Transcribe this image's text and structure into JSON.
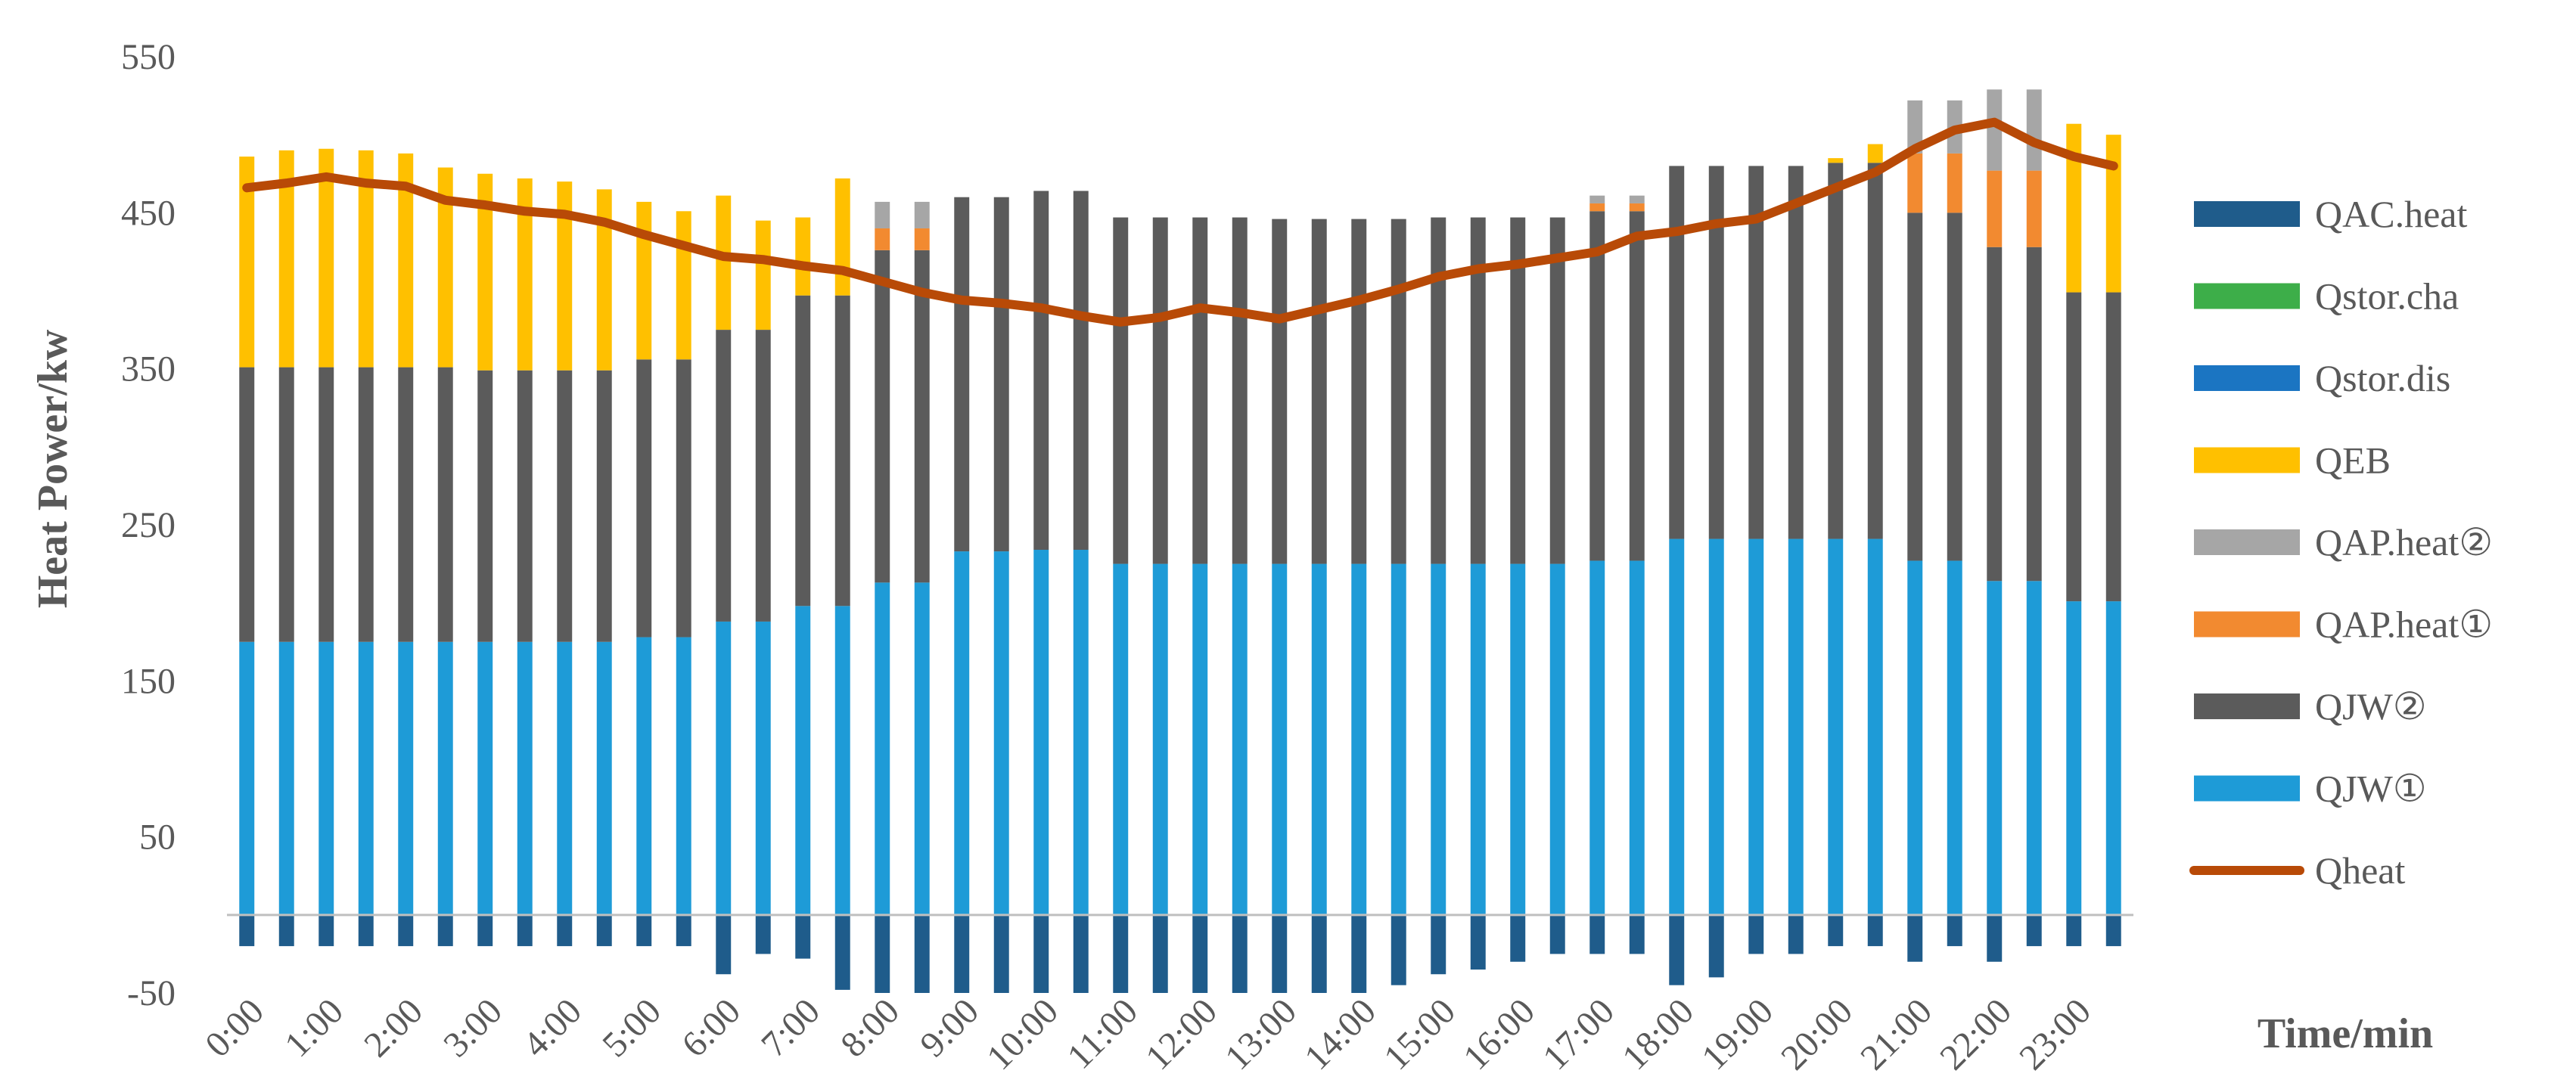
{
  "chart_data": {
    "type": "bar",
    "stacked": true,
    "xlabel": "Time/min",
    "ylabel": "Heat Power/kw",
    "ylim": [
      -50,
      550
    ],
    "yticks": [
      -50,
      50,
      150,
      250,
      350,
      450,
      550
    ],
    "x": [
      "0:00",
      "0:30",
      "1:00",
      "1:30",
      "2:00",
      "2:30",
      "3:00",
      "3:30",
      "4:00",
      "4:30",
      "5:00",
      "5:30",
      "6:00",
      "6:30",
      "7:00",
      "7:30",
      "8:00",
      "8:30",
      "9:00",
      "9:30",
      "10:00",
      "10:30",
      "11:00",
      "11:30",
      "12:00",
      "12:30",
      "13:00",
      "13:30",
      "14:00",
      "14:30",
      "15:00",
      "15:30",
      "16:00",
      "16:30",
      "17:00",
      "17:30",
      "18:00",
      "18:30",
      "19:00",
      "19:30",
      "20:00",
      "20:30",
      "21:00",
      "21:30",
      "22:00",
      "22:30",
      "23:00",
      "23:30"
    ],
    "xtick_labels": [
      "0:00",
      "1:00",
      "2:00",
      "3:00",
      "4:00",
      "5:00",
      "6:00",
      "7:00",
      "8:00",
      "9:00",
      "10:00",
      "11:00",
      "12:00",
      "13:00",
      "14:00",
      "15:00",
      "16:00",
      "17:00",
      "18:00",
      "19:00",
      "20:00",
      "21:00",
      "22:00",
      "23:00"
    ],
    "legend_position": "right",
    "series": [
      {
        "name": "QAC.heat",
        "kind": "bar",
        "color": "#1F5C8B",
        "values": [
          -20,
          -20,
          -20,
          -20,
          -20,
          -20,
          -20,
          -20,
          -20,
          -20,
          -20,
          -20,
          -38,
          -25,
          -28,
          -48,
          -50,
          -50,
          -50,
          -50,
          -50,
          -50,
          -50,
          -50,
          -50,
          -50,
          -50,
          -50,
          -50,
          -45,
          -38,
          -35,
          -30,
          -25,
          -25,
          -25,
          -45,
          -40,
          -25,
          -25,
          -20,
          -20,
          -30,
          -20,
          -30,
          -20,
          -20,
          -20
        ]
      },
      {
        "name": "Qstor.cha",
        "kind": "bar",
        "color": "#3DAE49",
        "values": [
          0,
          0,
          0,
          0,
          0,
          0,
          0,
          0,
          0,
          0,
          0,
          0,
          0,
          0,
          0,
          0,
          0,
          0,
          0,
          0,
          0,
          0,
          0,
          0,
          0,
          0,
          0,
          0,
          0,
          0,
          0,
          0,
          0,
          0,
          0,
          0,
          0,
          0,
          0,
          0,
          0,
          0,
          0,
          0,
          0,
          0,
          0,
          0
        ]
      },
      {
        "name": "Qstor.dis",
        "kind": "bar",
        "color": "#1B75C2",
        "values": [
          0,
          0,
          0,
          0,
          0,
          0,
          0,
          0,
          0,
          0,
          0,
          0,
          0,
          0,
          0,
          0,
          0,
          0,
          0,
          0,
          0,
          0,
          0,
          0,
          0,
          0,
          0,
          0,
          0,
          0,
          0,
          0,
          0,
          0,
          0,
          0,
          0,
          0,
          0,
          0,
          0,
          0,
          0,
          0,
          0,
          0,
          0,
          0
        ]
      },
      {
        "name": "QJW①",
        "kind": "bar",
        "color": "#1E9BD7",
        "values": [
          175,
          175,
          175,
          175,
          175,
          175,
          175,
          175,
          175,
          175,
          178,
          178,
          188,
          188,
          198,
          198,
          213,
          213,
          233,
          233,
          234,
          234,
          225,
          225,
          225,
          225,
          225,
          225,
          225,
          225,
          225,
          225,
          225,
          225,
          227,
          227,
          241,
          241,
          241,
          241,
          241,
          241,
          227,
          227,
          214,
          214,
          201,
          201
        ]
      },
      {
        "name": "QJW②",
        "kind": "bar",
        "color": "#5B5B5B",
        "values": [
          176,
          176,
          176,
          176,
          176,
          176,
          174,
          174,
          174,
          174,
          178,
          178,
          187,
          187,
          199,
          199,
          213,
          213,
          227,
          227,
          230,
          230,
          222,
          222,
          222,
          222,
          221,
          221,
          221,
          221,
          222,
          222,
          222,
          222,
          224,
          224,
          239,
          239,
          239,
          239,
          241,
          241,
          223,
          223,
          214,
          214,
          198,
          198
        ]
      },
      {
        "name": "QAP.heat①",
        "kind": "bar",
        "color": "#F28A30",
        "values": [
          0,
          0,
          0,
          0,
          0,
          0,
          0,
          0,
          0,
          0,
          0,
          0,
          0,
          0,
          0,
          0,
          14,
          14,
          0,
          0,
          0,
          0,
          0,
          0,
          0,
          0,
          0,
          0,
          0,
          0,
          0,
          0,
          0,
          0,
          5,
          5,
          0,
          0,
          0,
          0,
          0,
          0,
          38,
          38,
          49,
          49,
          0,
          0
        ]
      },
      {
        "name": "QAP.heat②",
        "kind": "bar",
        "color": "#A6A6A6",
        "values": [
          0,
          0,
          0,
          0,
          0,
          0,
          0,
          0,
          0,
          0,
          0,
          0,
          0,
          0,
          0,
          0,
          17,
          17,
          0,
          0,
          0,
          0,
          0,
          0,
          0,
          0,
          0,
          0,
          0,
          0,
          0,
          0,
          0,
          0,
          5,
          5,
          0,
          0,
          0,
          0,
          0,
          0,
          34,
          34,
          52,
          52,
          0,
          0
        ]
      },
      {
        "name": "QEB",
        "kind": "bar",
        "color": "#FFC000",
        "values": [
          135,
          139,
          140,
          139,
          137,
          128,
          126,
          123,
          121,
          116,
          101,
          95,
          86,
          70,
          50,
          75,
          0,
          0,
          0,
          0,
          0,
          0,
          0,
          0,
          0,
          0,
          0,
          0,
          0,
          0,
          0,
          0,
          0,
          0,
          0,
          0,
          0,
          0,
          0,
          0,
          3,
          12,
          0,
          0,
          0,
          0,
          108,
          101
        ]
      },
      {
        "name": "Qheat",
        "kind": "line",
        "color": "#B84A07",
        "values": [
          466,
          469,
          473,
          469,
          467,
          458,
          455,
          451,
          449,
          444,
          436,
          429,
          422,
          420,
          416,
          413,
          406,
          399,
          394,
          392,
          389,
          384,
          380,
          383,
          389,
          386,
          382,
          388,
          394,
          401,
          409,
          414,
          417,
          421,
          425,
          435,
          438,
          443,
          446,
          456,
          466,
          476,
          491,
          503,
          508,
          495,
          486,
          480
        ]
      }
    ]
  }
}
